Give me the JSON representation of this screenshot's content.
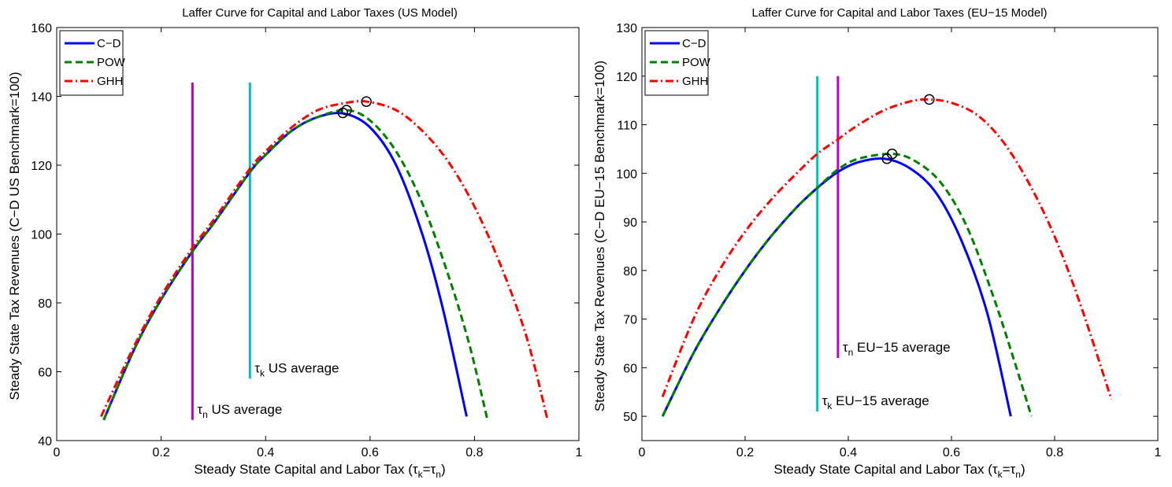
{
  "chart_data": [
    {
      "type": "line",
      "title": "Laffer Curve for Capital and Labor Taxes (US Model)",
      "xlabel": "Steady State Capital and Labor Tax (τk=τn)",
      "xlabel_parts": {
        "prefix": "Steady State Capital and Labor Tax (",
        "tau": "τ",
        "sub1": "k",
        "eq": "=",
        "sub2": "n",
        "suffix": ")"
      },
      "ylabel": "Steady State Tax Revenues (C−D US Benchmark=100)",
      "xlim": [
        0,
        1
      ],
      "ylim": [
        40,
        160
      ],
      "xticks": [
        0,
        0.2,
        0.4,
        0.6,
        0.8,
        1
      ],
      "xtick_labels": [
        "0",
        "0.2",
        "0.4",
        "0.6",
        "0.8",
        "1"
      ],
      "yticks": [
        40,
        60,
        80,
        100,
        120,
        140,
        160
      ],
      "ytick_labels": [
        "40",
        "60",
        "80",
        "100",
        "120",
        "140",
        "160"
      ],
      "legend_position": "top-left",
      "series": [
        {
          "name": "C−D",
          "color": "#0000ff",
          "style": "solid",
          "x": [
            0.09,
            0.15,
            0.2,
            0.26,
            0.3,
            0.37,
            0.4,
            0.45,
            0.5,
            0.55,
            0.6,
            0.65,
            0.7,
            0.74,
            0.785
          ],
          "y": [
            46,
            67,
            81,
            95,
            103,
            118,
            123,
            130,
            134,
            135,
            131,
            120,
            100,
            78,
            47
          ]
        },
        {
          "name": "POW",
          "color": "#008000",
          "style": "dashed",
          "x": [
            0.09,
            0.15,
            0.2,
            0.26,
            0.3,
            0.37,
            0.4,
            0.45,
            0.5,
            0.555,
            0.6,
            0.65,
            0.7,
            0.75,
            0.79,
            0.825
          ],
          "y": [
            46,
            67,
            81,
            95,
            103,
            118,
            123,
            130,
            134,
            136,
            133,
            124,
            109,
            88,
            68,
            46
          ]
        },
        {
          "name": "GHH",
          "color": "#ff0000",
          "style": "dashdot",
          "x": [
            0.085,
            0.15,
            0.2,
            0.26,
            0.3,
            0.37,
            0.4,
            0.45,
            0.5,
            0.55,
            0.593,
            0.65,
            0.7,
            0.75,
            0.8,
            0.85,
            0.9,
            0.94
          ],
          "y": [
            47,
            68,
            82,
            96,
            104,
            119,
            124,
            131,
            136,
            138,
            138.5,
            136,
            130,
            121,
            108,
            91,
            70,
            46
          ]
        }
      ],
      "peaks": [
        {
          "x": 0.548,
          "y": 135.2
        },
        {
          "x": 0.555,
          "y": 136
        },
        {
          "x": 0.593,
          "y": 138.5
        }
      ],
      "vlines": [
        {
          "x": 0.26,
          "y_range": [
            46,
            144
          ],
          "color": "#bf00bf",
          "label": {
            "tau": "τ",
            "sub": "n",
            "text": " US average"
          }
        },
        {
          "x": 0.37,
          "y_range": [
            58,
            144
          ],
          "color": "#00bfbf",
          "label": {
            "tau": "τ",
            "sub": "k",
            "text": " US average"
          }
        }
      ]
    },
    {
      "type": "line",
      "title": "Laffer Curve for Capital and Labor Taxes (EU−15 Model)",
      "xlabel": "Steady State Capital and Labor Tax (τk=τn)",
      "xlabel_parts": {
        "prefix": "Steady State Capital and Labor Tax (",
        "tau": "τ",
        "sub1": "k",
        "eq": "=",
        "sub2": "n",
        "suffix": ")"
      },
      "ylabel": "Steady State Tax Revenues (C−D EU−15 Benchmark=100)",
      "xlim": [
        0,
        1
      ],
      "ylim": [
        45,
        130
      ],
      "xticks": [
        0,
        0.2,
        0.4,
        0.6,
        0.8,
        1
      ],
      "xtick_labels": [
        "0",
        "0.2",
        "0.4",
        "0.6",
        "0.8",
        "1"
      ],
      "yticks": [
        50,
        60,
        70,
        80,
        90,
        100,
        110,
        120,
        130
      ],
      "ytick_labels": [
        "50",
        "60",
        "70",
        "80",
        "90",
        "100",
        "110",
        "120",
        "130"
      ],
      "legend_position": "top-left",
      "series": [
        {
          "name": "C−D",
          "color": "#0000ff",
          "style": "solid",
          "x": [
            0.04,
            0.1,
            0.15,
            0.2,
            0.25,
            0.3,
            0.34,
            0.38,
            0.42,
            0.47,
            0.52,
            0.57,
            0.62,
            0.67,
            0.715
          ],
          "y": [
            50,
            63,
            72,
            80,
            87,
            93,
            97,
            100.3,
            102.3,
            103,
            101,
            96,
            86,
            71,
            50
          ]
        },
        {
          "name": "POW",
          "color": "#008000",
          "style": "dashed",
          "x": [
            0.04,
            0.1,
            0.15,
            0.2,
            0.25,
            0.3,
            0.34,
            0.38,
            0.42,
            0.485,
            0.53,
            0.58,
            0.63,
            0.68,
            0.72,
            0.755
          ],
          "y": [
            50,
            63,
            72,
            80,
            87,
            93,
            97,
            100.8,
            103,
            104,
            102.5,
            98,
            89,
            75,
            62,
            50
          ]
        },
        {
          "name": "GHH",
          "color": "#ff0000",
          "style": "dashdot",
          "x": [
            0.04,
            0.1,
            0.15,
            0.2,
            0.25,
            0.3,
            0.34,
            0.38,
            0.42,
            0.47,
            0.52,
            0.557,
            0.6,
            0.65,
            0.7,
            0.75,
            0.8,
            0.85,
            0.91
          ],
          "y": [
            54,
            70,
            80,
            88,
            94.5,
            100,
            104,
            107,
            110,
            113,
            114.8,
            115.2,
            114.5,
            112,
            106.5,
            98,
            87,
            73,
            53.5
          ]
        }
      ],
      "peaks": [
        {
          "x": 0.475,
          "y": 103
        },
        {
          "x": 0.485,
          "y": 104
        },
        {
          "x": 0.557,
          "y": 115.2
        }
      ],
      "vlines": [
        {
          "x": 0.34,
          "y_range": [
            51,
            120
          ],
          "color": "#00bfbf",
          "label": {
            "tau": "τ",
            "sub": "k",
            "text": " EU−15 average"
          }
        },
        {
          "x": 0.38,
          "y_range": [
            62,
            120
          ],
          "color": "#bf00bf",
          "label": {
            "tau": "τ",
            "sub": "n",
            "text": " EU−15 average"
          }
        }
      ]
    }
  ]
}
